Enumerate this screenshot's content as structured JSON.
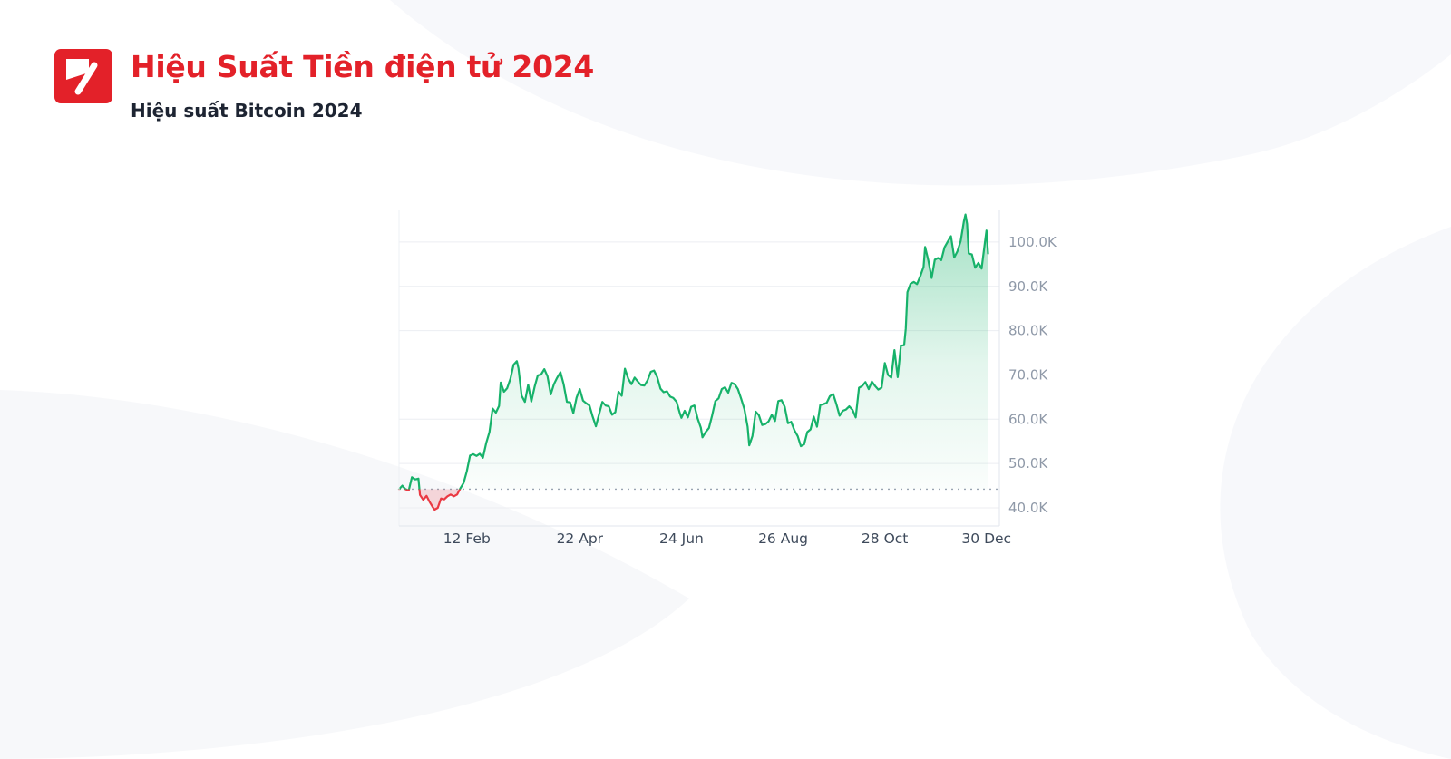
{
  "header": {
    "title": "Hiệu Suất Tiền điện tử 2024",
    "subtitle": "Hiệu suất Bitcoin 2024"
  },
  "colors": {
    "brand": "#e32129",
    "title": "#e32129",
    "subtitle": "#1d2432",
    "axis_label": "#8f99a8",
    "x_label": "#3e4a5b",
    "line_up": "#17b26a",
    "line_down": "#ea3943",
    "fill_up": "#17b26a",
    "fill_down": "#ea3943",
    "grid": "#eceef2",
    "axis": "#e2e6ec",
    "baseline": "#9aa4b2",
    "decor": "#f6f7fa"
  },
  "chart_data": {
    "type": "area",
    "title": "Hiệu suất Bitcoin 2024",
    "ylabel": "",
    "xlabel": "",
    "y_unit": "K (USD thousands)",
    "x_unit": "day of 2024 (0 = 1 Jan)",
    "ylim": [
      35.9,
      107
    ],
    "grid": true,
    "legend": "none",
    "baseline_value": 44.2,
    "y_ticks": [
      {
        "value": 40,
        "label": "40.0K"
      },
      {
        "value": 50,
        "label": "50.0K"
      },
      {
        "value": 60,
        "label": "60.0K"
      },
      {
        "value": 70,
        "label": "70.0K"
      },
      {
        "value": 80,
        "label": "80.0K"
      },
      {
        "value": 90,
        "label": "90.0K"
      },
      {
        "value": 100,
        "label": "100.0K"
      }
    ],
    "x_ticks": [
      {
        "day": 42,
        "label": "12 Feb"
      },
      {
        "day": 112,
        "label": "22 Apr"
      },
      {
        "day": 175,
        "label": "24 Jun"
      },
      {
        "day": 238,
        "label": "26 Aug"
      },
      {
        "day": 301,
        "label": "28 Oct"
      },
      {
        "day": 364,
        "label": "30 Dec"
      }
    ],
    "series": [
      {
        "name": "Bitcoin",
        "points": [
          [
            0,
            44.2
          ],
          [
            2,
            45.0
          ],
          [
            4,
            44.2
          ],
          [
            6,
            43.9
          ],
          [
            8,
            46.9
          ],
          [
            10,
            46.4
          ],
          [
            12,
            46.6
          ],
          [
            13,
            42.9
          ],
          [
            15,
            41.8
          ],
          [
            17,
            42.7
          ],
          [
            19,
            41.3
          ],
          [
            21,
            40.1
          ],
          [
            22,
            39.6
          ],
          [
            24,
            40.0
          ],
          [
            26,
            42.1
          ],
          [
            28,
            41.9
          ],
          [
            30,
            42.6
          ],
          [
            32,
            43.0
          ],
          [
            34,
            42.6
          ],
          [
            36,
            43.0
          ],
          [
            38,
            44.4
          ],
          [
            40,
            45.6
          ],
          [
            42,
            48.2
          ],
          [
            44,
            51.8
          ],
          [
            46,
            52.1
          ],
          [
            48,
            51.7
          ],
          [
            50,
            52.2
          ],
          [
            52,
            51.3
          ],
          [
            54,
            54.6
          ],
          [
            56,
            57.1
          ],
          [
            58,
            62.4
          ],
          [
            60,
            61.5
          ],
          [
            62,
            63.0
          ],
          [
            63,
            68.3
          ],
          [
            65,
            66.2
          ],
          [
            67,
            67.0
          ],
          [
            69,
            69.1
          ],
          [
            71,
            72.3
          ],
          [
            73,
            73.1
          ],
          [
            74,
            71.5
          ],
          [
            76,
            65.3
          ],
          [
            78,
            63.9
          ],
          [
            80,
            67.8
          ],
          [
            82,
            64.0
          ],
          [
            84,
            67.3
          ],
          [
            86,
            69.9
          ],
          [
            88,
            70.1
          ],
          [
            90,
            71.3
          ],
          [
            92,
            69.7
          ],
          [
            94,
            65.6
          ],
          [
            96,
            67.9
          ],
          [
            98,
            69.4
          ],
          [
            100,
            70.6
          ],
          [
            102,
            67.9
          ],
          [
            104,
            63.9
          ],
          [
            106,
            63.8
          ],
          [
            108,
            61.4
          ],
          [
            110,
            64.9
          ],
          [
            112,
            66.8
          ],
          [
            114,
            64.2
          ],
          [
            116,
            63.6
          ],
          [
            118,
            63.1
          ],
          [
            120,
            60.6
          ],
          [
            122,
            58.4
          ],
          [
            124,
            61.2
          ],
          [
            126,
            63.9
          ],
          [
            128,
            63.1
          ],
          [
            130,
            62.9
          ],
          [
            132,
            61.0
          ],
          [
            134,
            61.6
          ],
          [
            136,
            66.2
          ],
          [
            138,
            65.3
          ],
          [
            140,
            71.4
          ],
          [
            142,
            69.2
          ],
          [
            144,
            67.9
          ],
          [
            146,
            69.4
          ],
          [
            148,
            68.5
          ],
          [
            150,
            67.7
          ],
          [
            152,
            67.6
          ],
          [
            154,
            68.8
          ],
          [
            156,
            70.7
          ],
          [
            158,
            71.0
          ],
          [
            160,
            69.5
          ],
          [
            162,
            66.9
          ],
          [
            164,
            66.1
          ],
          [
            166,
            66.3
          ],
          [
            168,
            65.1
          ],
          [
            170,
            64.8
          ],
          [
            172,
            63.9
          ],
          [
            174,
            61.4
          ],
          [
            175,
            60.3
          ],
          [
            177,
            61.9
          ],
          [
            179,
            60.4
          ],
          [
            181,
            62.8
          ],
          [
            183,
            63.1
          ],
          [
            185,
            60.2
          ],
          [
            187,
            58.1
          ],
          [
            188,
            55.9
          ],
          [
            190,
            57.1
          ],
          [
            192,
            58.0
          ],
          [
            194,
            60.8
          ],
          [
            196,
            64.1
          ],
          [
            198,
            64.7
          ],
          [
            200,
            66.8
          ],
          [
            202,
            67.2
          ],
          [
            204,
            66.0
          ],
          [
            206,
            68.2
          ],
          [
            208,
            67.9
          ],
          [
            210,
            66.8
          ],
          [
            212,
            64.6
          ],
          [
            214,
            62.3
          ],
          [
            216,
            58.3
          ],
          [
            217,
            54.1
          ],
          [
            219,
            56.2
          ],
          [
            221,
            61.7
          ],
          [
            223,
            60.9
          ],
          [
            225,
            58.7
          ],
          [
            227,
            58.9
          ],
          [
            229,
            59.5
          ],
          [
            231,
            61.0
          ],
          [
            233,
            59.6
          ],
          [
            235,
            64.1
          ],
          [
            237,
            64.3
          ],
          [
            239,
            62.8
          ],
          [
            241,
            59.1
          ],
          [
            243,
            59.4
          ],
          [
            245,
            57.5
          ],
          [
            247,
            56.2
          ],
          [
            249,
            53.9
          ],
          [
            251,
            54.3
          ],
          [
            253,
            57.1
          ],
          [
            255,
            57.7
          ],
          [
            257,
            60.6
          ],
          [
            259,
            58.3
          ],
          [
            261,
            63.2
          ],
          [
            263,
            63.4
          ],
          [
            265,
            63.7
          ],
          [
            267,
            65.2
          ],
          [
            269,
            65.7
          ],
          [
            271,
            63.4
          ],
          [
            273,
            60.8
          ],
          [
            275,
            61.9
          ],
          [
            277,
            62.2
          ],
          [
            279,
            62.9
          ],
          [
            281,
            62.1
          ],
          [
            283,
            60.4
          ],
          [
            285,
            67.1
          ],
          [
            287,
            67.5
          ],
          [
            289,
            68.4
          ],
          [
            291,
            66.8
          ],
          [
            293,
            68.5
          ],
          [
            295,
            67.5
          ],
          [
            297,
            66.7
          ],
          [
            299,
            67.1
          ],
          [
            301,
            72.7
          ],
          [
            303,
            70.0
          ],
          [
            305,
            69.4
          ],
          [
            307,
            75.6
          ],
          [
            309,
            69.5
          ],
          [
            311,
            76.6
          ],
          [
            313,
            76.7
          ],
          [
            314,
            80.5
          ],
          [
            315,
            88.7
          ],
          [
            317,
            90.6
          ],
          [
            319,
            91.0
          ],
          [
            321,
            90.5
          ],
          [
            323,
            92.3
          ],
          [
            325,
            94.4
          ],
          [
            326,
            98.9
          ],
          [
            328,
            95.8
          ],
          [
            330,
            91.9
          ],
          [
            332,
            96.0
          ],
          [
            334,
            96.4
          ],
          [
            336,
            95.9
          ],
          [
            338,
            98.8
          ],
          [
            340,
            100.1
          ],
          [
            342,
            101.3
          ],
          [
            344,
            96.5
          ],
          [
            346,
            97.9
          ],
          [
            348,
            100.2
          ],
          [
            350,
            104.6
          ],
          [
            351,
            106.2
          ],
          [
            352,
            104.1
          ],
          [
            353,
            97.4
          ],
          [
            355,
            97.2
          ],
          [
            357,
            94.2
          ],
          [
            359,
            95.3
          ],
          [
            361,
            94.0
          ],
          [
            363,
            99.8
          ],
          [
            364,
            102.6
          ],
          [
            365,
            97.4
          ]
        ]
      }
    ]
  }
}
